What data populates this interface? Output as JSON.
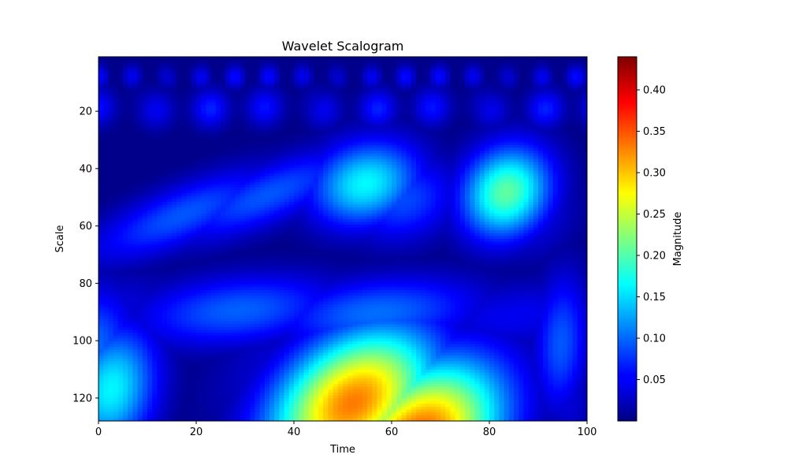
{
  "chart_data": {
    "type": "heatmap",
    "title": "Wavelet Scalogram",
    "xlabel": "Time",
    "ylabel": "Scale",
    "xlim": [
      0,
      100
    ],
    "ylim": [
      128,
      1
    ],
    "x_ticks": [
      "0",
      "20",
      "40",
      "60",
      "80",
      "100"
    ],
    "y_ticks": [
      "20",
      "40",
      "60",
      "80",
      "100",
      "120"
    ],
    "colorbar": {
      "label": "Magnitude",
      "colormap": "jet",
      "range": [
        0.0,
        0.44
      ],
      "ticks": [
        "0.05",
        "0.10",
        "0.15",
        "0.20",
        "0.25",
        "0.30",
        "0.35",
        "0.40"
      ]
    },
    "features": [
      {
        "region": "bottom-center",
        "time": [
          40,
          75
        ],
        "scale": [
          100,
          128
        ],
        "peak_magnitude": 0.44
      },
      {
        "region": "left-lower",
        "time": [
          0,
          10
        ],
        "scale": [
          85,
          128
        ],
        "peak_magnitude": 0.2
      },
      {
        "region": "right-middle",
        "time": [
          78,
          92
        ],
        "scale": [
          38,
          62
        ],
        "peak_magnitude": 0.21
      },
      {
        "region": "center-middle",
        "time": [
          45,
          65
        ],
        "scale": [
          35,
          58
        ],
        "peak_magnitude": 0.18
      },
      {
        "region": "diagonal-band",
        "time": [
          5,
          45
        ],
        "scale": [
          28,
          68
        ],
        "peak_magnitude": 0.13
      }
    ]
  }
}
